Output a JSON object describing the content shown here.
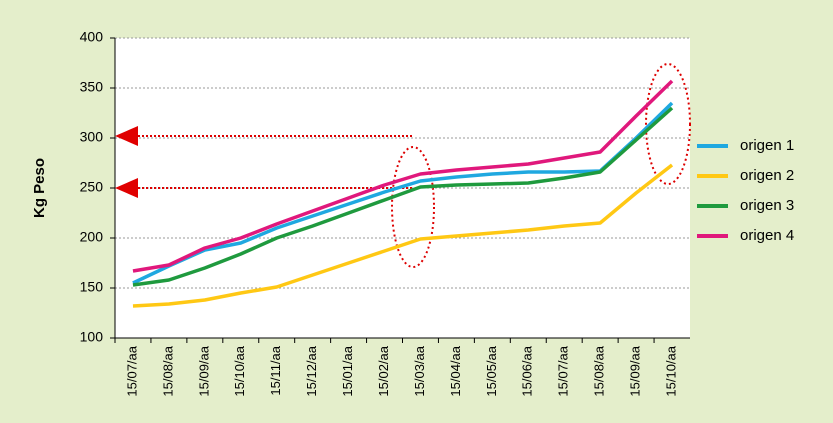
{
  "chart_data": {
    "type": "line",
    "y_label": "Kg Peso",
    "categories": [
      "15/07/aa",
      "15/08/aa",
      "15/09/aa",
      "15/10/aa",
      "15/11/aa",
      "15/12/aa",
      "15/01/aa",
      "15/02/aa",
      "15/03/aa",
      "15/04/aa",
      "15/05/aa",
      "15/06/aa",
      "15/07/aa",
      "15/08/aa",
      "15/09/aa",
      "15/10/aa"
    ],
    "series": [
      {
        "name": "origen 1",
        "color": "#1fa8e0",
        "values": [
          155,
          172,
          188,
          195,
          210,
          222,
          234,
          246,
          257,
          261,
          264,
          266,
          266,
          267,
          300,
          335
        ]
      },
      {
        "name": "origen 2",
        "color": "#ffc814",
        "values": [
          132,
          134,
          138,
          145,
          151,
          163,
          175,
          187,
          199,
          202,
          205,
          208,
          212,
          215,
          245,
          273
        ]
      },
      {
        "name": "origen 3",
        "color": "#1f9a3e",
        "values": [
          153,
          158,
          170,
          184,
          200,
          212,
          225,
          238,
          251,
          253,
          254,
          255,
          260,
          266,
          298,
          330
        ]
      },
      {
        "name": "origen 4",
        "color": "#e0187c",
        "values": [
          167,
          173,
          190,
          200,
          214,
          227,
          240,
          253,
          264,
          268,
          271,
          274,
          280,
          286,
          322,
          357
        ]
      }
    ],
    "reference_lines": [
      302,
      250
    ],
    "ylim": [
      100,
      400
    ],
    "yticks": [
      100,
      150,
      200,
      250,
      300,
      350,
      400
    ],
    "grid": true
  }
}
